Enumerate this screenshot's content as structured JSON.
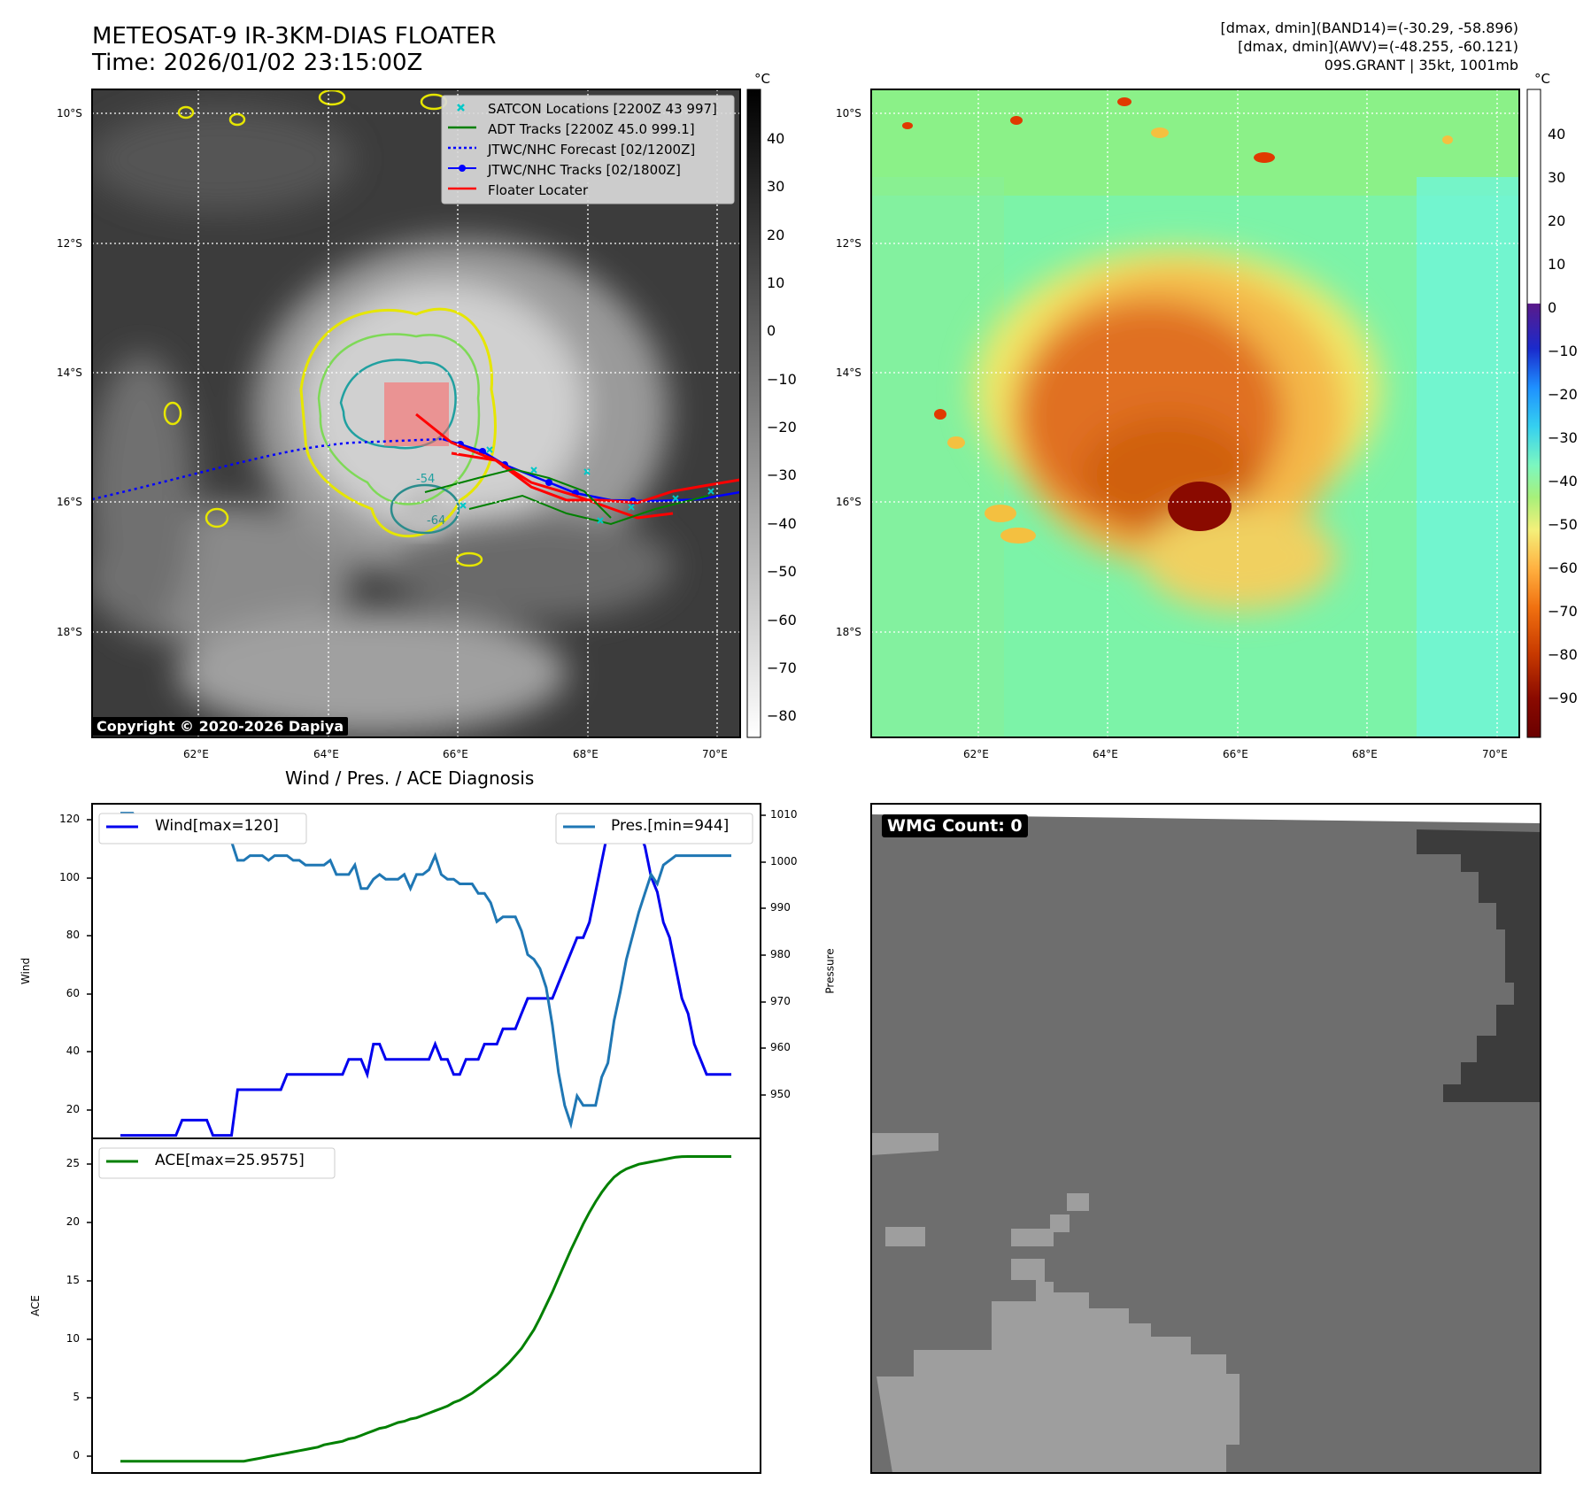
{
  "header": {
    "title_line1": "METEOSAT-9 IR-3KM-DIAS FLOATER",
    "title_line2": "Time: 2026/01/02 23:15:00Z",
    "right_line1": "[dmax, dmin](BAND14)=(-30.29, -58.896)",
    "right_line2": "[dmax, dmin](AWV)=(-48.255, -60.121)",
    "right_line3": "09S.GRANT | 35kt, 1001mb"
  },
  "ir_panel": {
    "lat_labels": [
      "10°S",
      "12°S",
      "14°S",
      "16°S",
      "18°S"
    ],
    "lon_labels": [
      "62°E",
      "64°E",
      "66°E",
      "68°E",
      "70°E"
    ],
    "copyright": "Copyright © 2020-2026 Dapiya",
    "colorbar_unit": "°C",
    "colorbar_ticks": [
      "40",
      "30",
      "20",
      "10",
      "0",
      "−10",
      "−20",
      "−30",
      "−40",
      "−50",
      "−60",
      "−70",
      "−80"
    ],
    "legend": [
      {
        "label": "SATCON Locations [2200Z 43 997]",
        "color": "#00c8c8",
        "icon": "x-marker-icon"
      },
      {
        "label": "ADT Tracks [2200Z 45.0 999.1]",
        "color": "#008000",
        "icon": "solid-line-icon"
      },
      {
        "label": "JTWC/NHC Forecast [02/1200Z]",
        "color": "#0000ff",
        "icon": "dotted-line-icon"
      },
      {
        "label": "JTWC/NHC Tracks [02/1800Z]",
        "color": "#0000ff",
        "icon": "dot-line-icon"
      },
      {
        "label": "Floater Locater",
        "color": "#ff0000",
        "icon": "solid-line-icon"
      }
    ],
    "contour_labels": [
      "-64",
      "-54"
    ]
  },
  "awv_panel": {
    "lat_labels": [
      "10°S",
      "12°S",
      "14°S",
      "16°S",
      "18°S"
    ],
    "lon_labels": [
      "62°E",
      "64°E",
      "66°E",
      "68°E",
      "70°E"
    ],
    "colorbar_unit": "°C",
    "colorbar_ticks": [
      "40",
      "30",
      "20",
      "10",
      "0",
      "−10",
      "−20",
      "−30",
      "−40",
      "−50",
      "−60",
      "−70",
      "−80",
      "−90"
    ]
  },
  "wind_panel": {
    "title": "Wind / Pres. / ACE Diagnosis",
    "wind_legend": "Wind[max=120]",
    "pres_legend": "Pres.[min=944]",
    "ace_legend": "ACE[max=25.9575]",
    "wind_ylabel": "Wind",
    "pres_ylabel": "Pressure",
    "ace_ylabel": "ACE",
    "wind_ticks": [
      "120",
      "100",
      "80",
      "60",
      "40",
      "20"
    ],
    "pres_ticks": [
      "1010",
      "1000",
      "990",
      "980",
      "970",
      "960",
      "950"
    ],
    "ace_ticks": [
      "25",
      "20",
      "15",
      "10",
      "5",
      "0"
    ]
  },
  "wmg_panel": {
    "badge": "WMG Count: 0"
  },
  "chart_data": [
    {
      "type": "line",
      "title": "Wind / Pres. / ACE Diagnosis",
      "ylabel": "Wind",
      "ylim": [
        14,
        124
      ],
      "series": [
        {
          "name": "Wind[max=120]",
          "color": "#0000ee",
          "values": [
            15,
            15,
            15,
            15,
            15,
            15,
            15,
            15,
            15,
            15,
            20,
            20,
            20,
            20,
            20,
            15,
            15,
            15,
            15,
            30,
            30,
            30,
            30,
            30,
            30,
            30,
            30,
            35,
            35,
            35,
            35,
            35,
            35,
            35,
            35,
            35,
            35,
            40,
            40,
            40,
            35,
            45,
            45,
            40,
            40,
            40,
            40,
            40,
            40,
            40,
            40,
            45,
            40,
            40,
            35,
            35,
            40,
            40,
            40,
            45,
            45,
            45,
            50,
            50,
            50,
            55,
            60,
            60,
            60,
            60,
            60,
            65,
            70,
            75,
            80,
            80,
            85,
            95,
            105,
            115,
            120,
            120,
            115,
            115,
            115,
            110,
            100,
            95,
            85,
            80,
            70,
            60,
            55,
            45,
            40,
            35,
            35,
            35,
            35,
            35
          ]
        }
      ]
    },
    {
      "type": "line",
      "ylabel": "Pressure",
      "ylim": [
        941,
        1012
      ],
      "series": [
        {
          "name": "Pres.[min=944]",
          "color": "#1f77b4",
          "values": [
            1010,
            1010,
            1010,
            1008,
            1008,
            1008,
            1008,
            1008,
            1008,
            1008,
            1006,
            1006,
            1006,
            1008,
            1008,
            1008,
            1008,
            1008,
            1004,
            1000,
            1000,
            1001,
            1001,
            1001,
            1000,
            1001,
            1001,
            1001,
            1000,
            1000,
            999,
            999,
            999,
            999,
            1000,
            997,
            997,
            997,
            999,
            994,
            994,
            996,
            997,
            996,
            996,
            996,
            997,
            994,
            997,
            997,
            998,
            1001,
            997,
            996,
            996,
            995,
            995,
            995,
            993,
            993,
            991,
            987,
            988,
            988,
            988,
            985,
            980,
            979,
            977,
            973,
            965,
            955,
            948,
            944,
            950,
            948,
            948,
            948,
            954,
            957,
            966,
            972,
            979,
            984,
            989,
            993,
            997,
            995,
            999,
            1000,
            1001,
            1001,
            1001,
            1001,
            1001,
            1001,
            1001,
            1001,
            1001,
            1001
          ]
        }
      ]
    },
    {
      "type": "line",
      "ylabel": "ACE",
      "ylim": [
        -1,
        27.5
      ],
      "series": [
        {
          "name": "ACE[max=25.9575]",
          "color": "#008000",
          "values": [
            0,
            0,
            0,
            0,
            0,
            0,
            0,
            0,
            0,
            0,
            0,
            0,
            0,
            0,
            0,
            0,
            0,
            0,
            0,
            0,
            0,
            0.1,
            0.2,
            0.3,
            0.4,
            0.5,
            0.6,
            0.7,
            0.8,
            0.9,
            1.0,
            1.1,
            1.2,
            1.4,
            1.5,
            1.6,
            1.7,
            1.9,
            2.0,
            2.2,
            2.4,
            2.6,
            2.8,
            2.9,
            3.1,
            3.3,
            3.4,
            3.6,
            3.7,
            3.9,
            4.1,
            4.3,
            4.5,
            4.7,
            5.0,
            5.2,
            5.5,
            5.8,
            6.2,
            6.6,
            7.0,
            7.4,
            7.9,
            8.4,
            9.0,
            9.6,
            10.4,
            11.2,
            12.2,
            13.3,
            14.4,
            15.6,
            16.8,
            18.0,
            19.1,
            20.2,
            21.2,
            22.1,
            22.9,
            23.6,
            24.2,
            24.6,
            24.9,
            25.1,
            25.3,
            25.4,
            25.5,
            25.6,
            25.7,
            25.8,
            25.9,
            25.95,
            25.9575,
            25.9575,
            25.9575,
            25.9575,
            25.9575,
            25.9575,
            25.9575,
            25.9575
          ]
        }
      ]
    }
  ]
}
